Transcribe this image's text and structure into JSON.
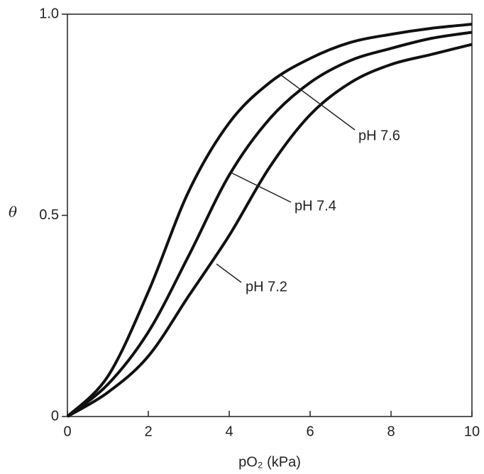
{
  "chart_data": {
    "type": "line",
    "x_label": "pO₂ (kPa)",
    "y_label": "θ",
    "x": [
      0,
      1,
      2,
      3,
      4,
      5,
      6,
      7,
      8,
      9,
      10
    ],
    "series": [
      {
        "name": "pH 7.6",
        "color": "#111111",
        "values": [
          0,
          0.1,
          0.31,
          0.56,
          0.73,
          0.83,
          0.89,
          0.93,
          0.95,
          0.965,
          0.975
        ]
      },
      {
        "name": "pH 7.4",
        "color": "#111111",
        "values": [
          0,
          0.08,
          0.21,
          0.4,
          0.6,
          0.74,
          0.83,
          0.885,
          0.915,
          0.94,
          0.955
        ]
      },
      {
        "name": "pH 7.2",
        "color": "#111111",
        "values": [
          0,
          0.06,
          0.15,
          0.3,
          0.45,
          0.62,
          0.75,
          0.83,
          0.875,
          0.9,
          0.925
        ]
      }
    ],
    "xlim": [
      0,
      10
    ],
    "ylim": [
      0,
      1
    ],
    "xticks": [
      0,
      2,
      4,
      6,
      8,
      10
    ],
    "yticks": [
      0,
      0.5,
      {
        "value": 1,
        "label": "1.0"
      }
    ]
  }
}
